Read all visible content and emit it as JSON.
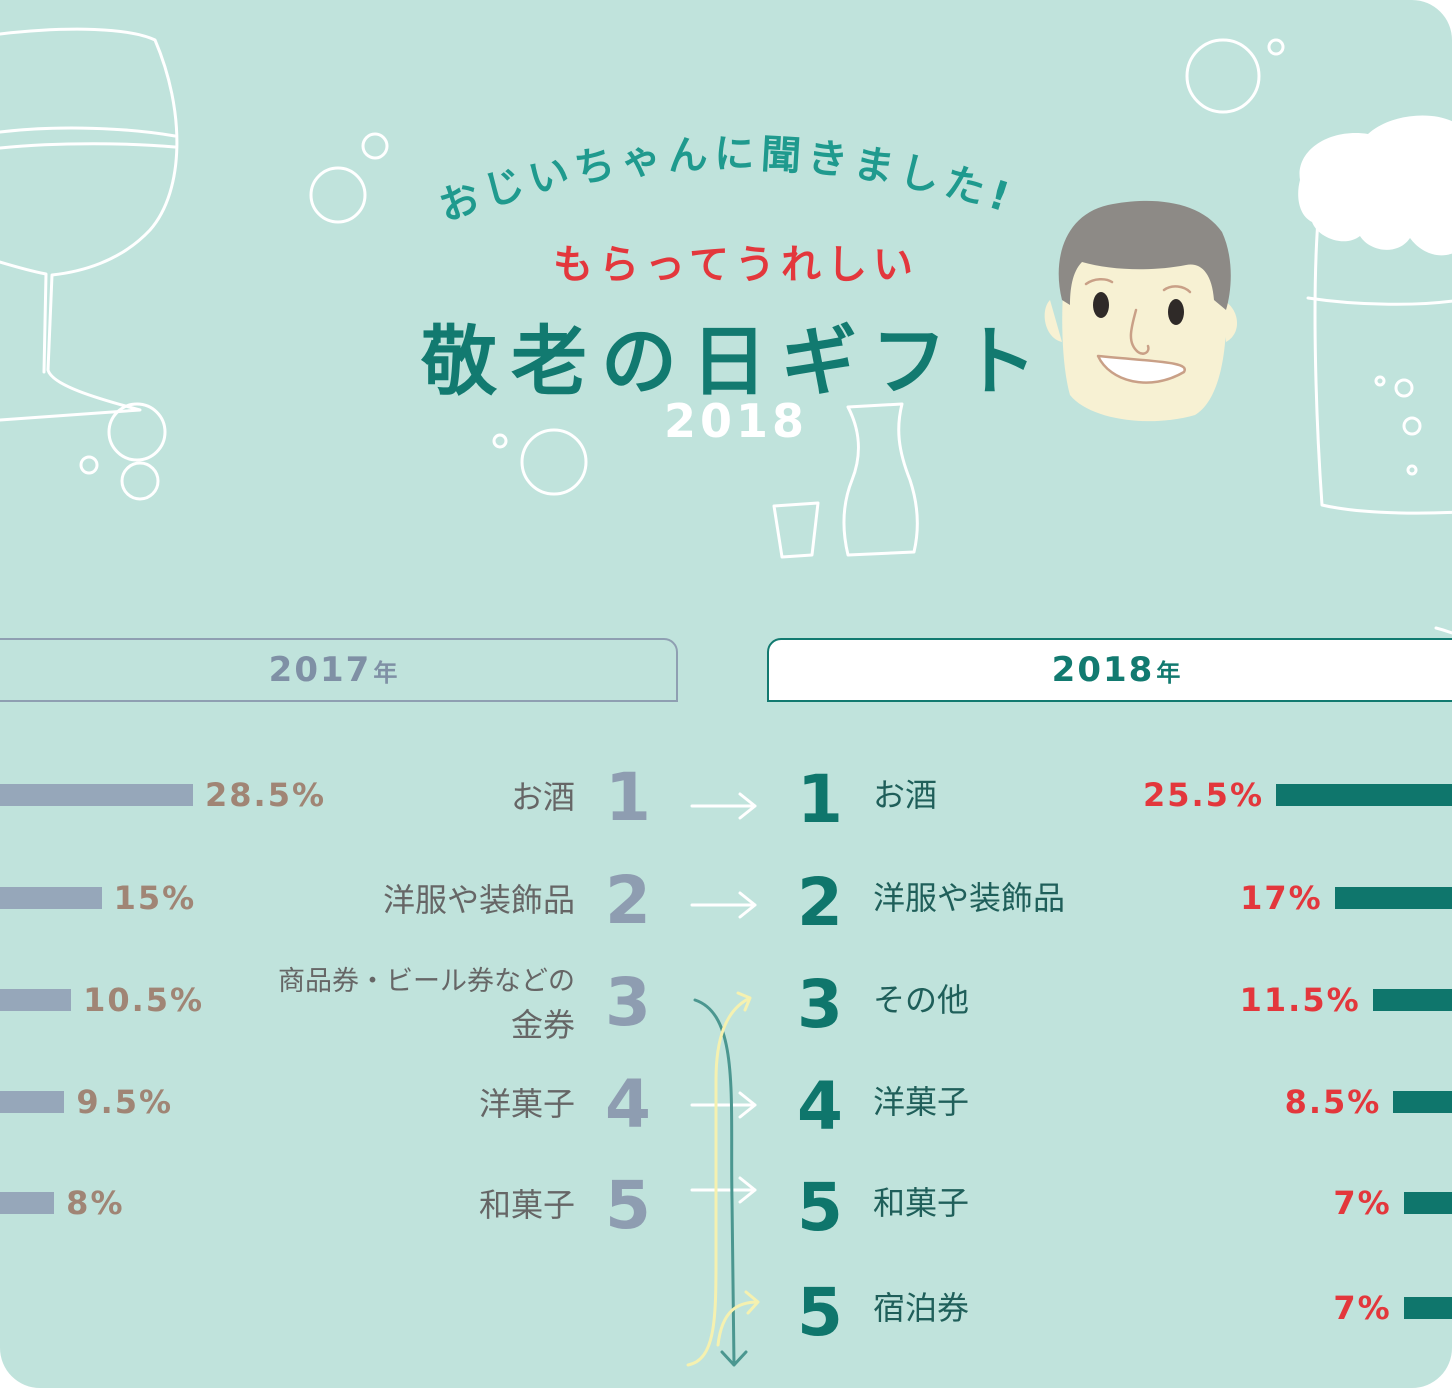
{
  "header": {
    "title_arc": "おじいちゃんに聞きました!",
    "subtitle": "もらってうれしい",
    "title": "敬老の日ギフト",
    "year": "2018"
  },
  "colors": {
    "background": "#c0e3dc",
    "teal": "#0f766c",
    "slate": "#96a7ba",
    "red": "#e3373c",
    "brown": "#a08575"
  },
  "chart_data": {
    "type": "bar",
    "panels": [
      {
        "year_label": "2017",
        "year_unit": "年",
        "items": [
          {
            "rank": "1",
            "label": "お酒",
            "value": 28.5,
            "value_label": "28.5%"
          },
          {
            "rank": "2",
            "label": "洋服や装飾品",
            "value": 15,
            "value_label": "15%"
          },
          {
            "rank": "3",
            "label": "商品券・ビール券などの",
            "label2": "金券",
            "value": 10.5,
            "value_label": "10.5%"
          },
          {
            "rank": "4",
            "label": "洋菓子",
            "value": 9.5,
            "value_label": "9.5%"
          },
          {
            "rank": "5",
            "label": "和菓子",
            "value": 8,
            "value_label": "8%"
          }
        ]
      },
      {
        "year_label": "2018",
        "year_unit": "年",
        "items": [
          {
            "rank": "1",
            "label": "お酒",
            "value": 25.5,
            "value_label": "25.5%"
          },
          {
            "rank": "2",
            "label": "洋服や装飾品",
            "value": 17,
            "value_label": "17%"
          },
          {
            "rank": "3",
            "label": "その他",
            "value": 11.5,
            "value_label": "11.5%"
          },
          {
            "rank": "4",
            "label": "洋菓子",
            "value": 8.5,
            "value_label": "8.5%"
          },
          {
            "rank": "5",
            "label": "和菓子",
            "value": 7,
            "value_label": "7%"
          },
          {
            "rank": "5",
            "label": "宿泊券",
            "value": 7,
            "value_label": "7%"
          }
        ]
      }
    ]
  }
}
